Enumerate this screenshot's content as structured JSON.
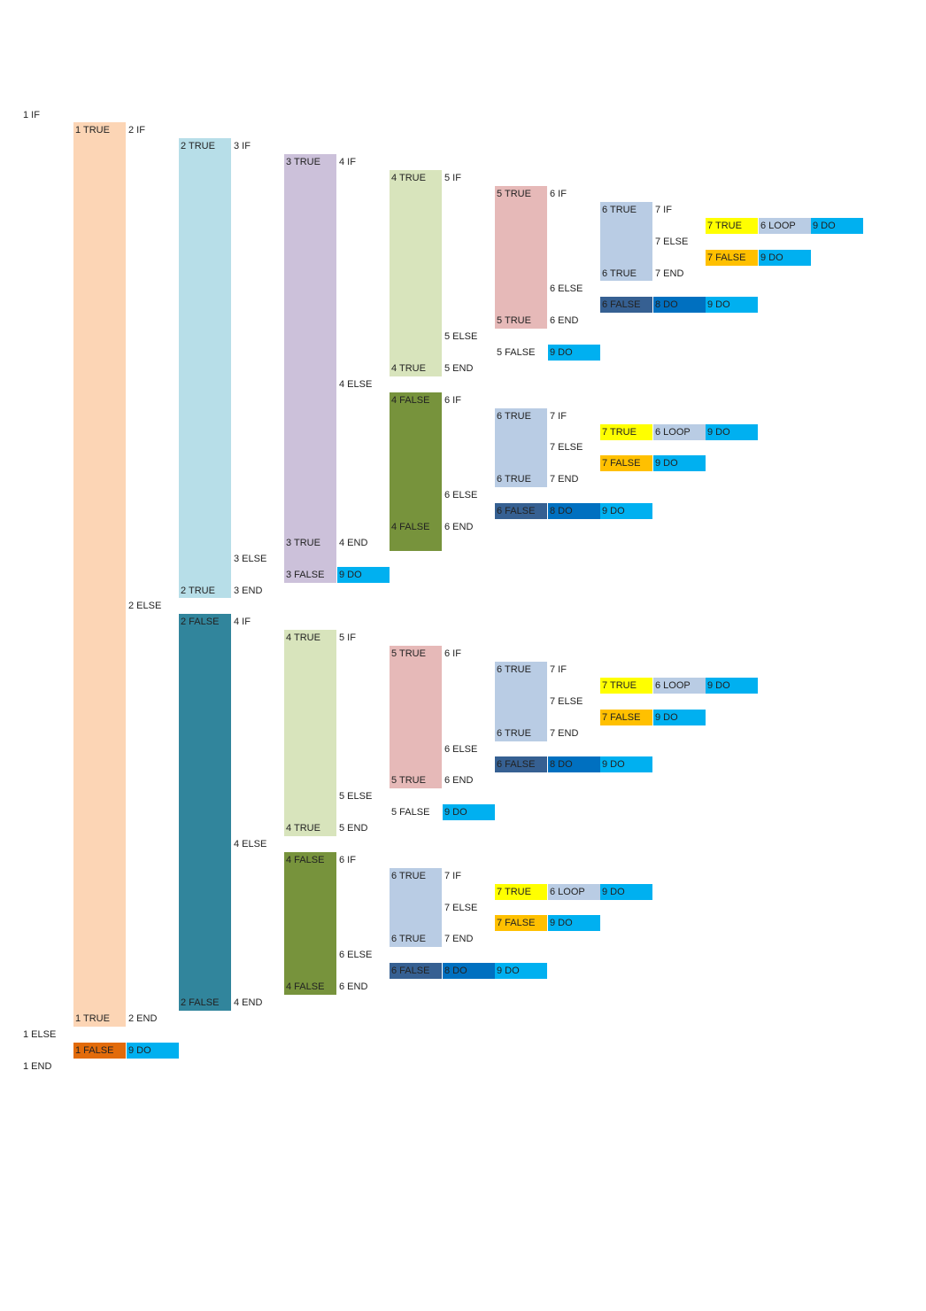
{
  "palette": {
    "t1": "#fcd5b5",
    "t2": "#b7dee8",
    "t3": "#ccc1da",
    "t4": "#d8e4bc",
    "t5": "#e6b9b8",
    "t6": "#b9cce4",
    "f1": "#e26b0a",
    "f2": "#31859c",
    "f4": "#77933c",
    "f6": "#366092",
    "t7": "#ffff00",
    "f7": "#ffc000",
    "do8": "#0070c0",
    "do9": "#00b0f0"
  },
  "labels": [
    "1 IF",
    "1 ELSE",
    "1 END",
    "1 TRUE",
    "2 IF",
    "2 ELSE",
    "1 TRUE",
    "2 END",
    "1 FALSE",
    "9 DO",
    "2 TRUE",
    "3 IF",
    "3 ELSE",
    "2 TRUE",
    "3 END",
    "3 TRUE",
    "4 IF",
    "4 ELSE",
    "3 TRUE",
    "4 END",
    "3 FALSE",
    "9 DO",
    "4 TRUE",
    "5 IF",
    "5 ELSE",
    "4 TRUE",
    "5 END",
    "5 TRUE",
    "6 IF",
    "6 ELSE",
    "5 TRUE",
    "6 END",
    "6 TRUE",
    "7 IF",
    "7 ELSE",
    "6 TRUE",
    "7 END",
    "7 TRUE",
    "6 LOOP",
    "9 DO",
    "7 FALSE",
    "9 DO",
    "6 FALSE",
    "8 DO",
    "9 DO",
    "5 FALSE",
    "9 DO",
    "4 FALSE",
    "6 IF",
    "6 ELSE",
    "4 FALSE",
    "6 END",
    "6 TRUE",
    "7 IF",
    "7 ELSE",
    "6 TRUE",
    "7 END",
    "7 TRUE",
    "6 LOOP",
    "9 DO",
    "7 FALSE",
    "9 DO",
    "6 FALSE",
    "8 DO",
    "9 DO",
    "2 FALSE",
    "4 IF",
    "4 ELSE",
    "2 FALSE",
    "4 END",
    "4 TRUE",
    "5 IF",
    "5 ELSE",
    "4 TRUE",
    "5 END",
    "5 TRUE",
    "6 IF",
    "6 ELSE",
    "5 TRUE",
    "6 END",
    "6 TRUE",
    "7 IF",
    "7 ELSE",
    "6 TRUE",
    "7 END",
    "7 TRUE",
    "6 LOOP",
    "9 DO",
    "7 FALSE",
    "9 DO",
    "6 FALSE",
    "8 DO",
    "9 DO",
    "5 FALSE",
    "9 DO",
    "4 FALSE",
    "6 IF",
    "6 ELSE",
    "4 FALSE",
    "6 END",
    "6 TRUE",
    "7 IF",
    "7 ELSE",
    "6 TRUE",
    "7 END",
    "7 TRUE",
    "6 LOOP",
    "9 DO",
    "7 FALSE",
    "9 DO",
    "6 FALSE",
    "8 DO",
    "9 DO"
  ]
}
